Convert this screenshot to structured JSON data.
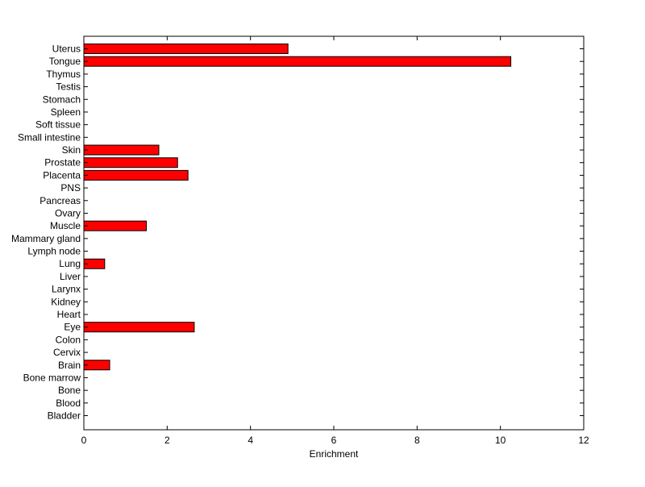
{
  "chart_data": {
    "type": "bar",
    "orientation": "horizontal",
    "categories": [
      "Uterus",
      "Tongue",
      "Thymus",
      "Testis",
      "Stomach",
      "Spleen",
      "Soft tissue",
      "Small intestine",
      "Skin",
      "Prostate",
      "Placenta",
      "PNS",
      "Pancreas",
      "Ovary",
      "Muscle",
      "Mammary gland",
      "Lymph node",
      "Lung",
      "Liver",
      "Larynx",
      "Kidney",
      "Heart",
      "Eye",
      "Colon",
      "Cervix",
      "Brain",
      "Bone marrow",
      "Bone",
      "Blood",
      "Bladder"
    ],
    "values": [
      4.9,
      10.25,
      0,
      0,
      0,
      0,
      0,
      0,
      1.8,
      2.25,
      2.5,
      0,
      0,
      0,
      1.5,
      0,
      0,
      0.5,
      0,
      0,
      0,
      0,
      2.65,
      0,
      0,
      0.62,
      0,
      0,
      0,
      0
    ],
    "xlabel": "Enrichment",
    "ylabel": "",
    "title": "",
    "xlim": [
      0,
      12
    ],
    "xticks": [
      0,
      2,
      4,
      6,
      8,
      10,
      12
    ],
    "grid": false,
    "bar_color": "#ff0000",
    "bar_edge_color": "#000000"
  }
}
